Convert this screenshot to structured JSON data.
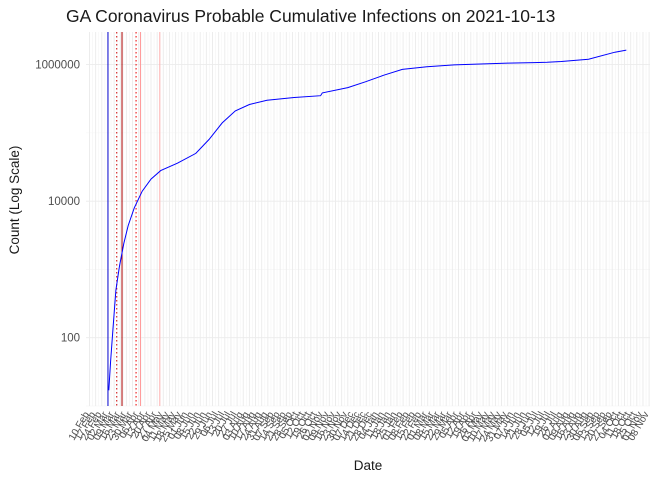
{
  "chart_data": {
    "type": "line",
    "title": "GA Coronavirus Probable Cumulative Infections on 2021-10-13",
    "xlabel": "Date",
    "ylabel": "Count (Log Scale)",
    "y_scale": "log10",
    "ylim": [
      10,
      3000000
    ],
    "xlim": [
      "2020-02-06",
      "2021-11-09"
    ],
    "grid": true,
    "series": [
      {
        "color": "#0000ff",
        "x": [
          "2020-03-03",
          "2020-03-05",
          "2020-03-08",
          "2020-03-11",
          "2020-03-15",
          "2020-03-20",
          "2020-03-25",
          "2020-04-01",
          "2020-04-10",
          "2020-04-20",
          "2020-05-01",
          "2020-05-20",
          "2020-06-10",
          "2020-06-25",
          "2020-07-10",
          "2020-07-25",
          "2020-08-10",
          "2020-08-30",
          "2020-09-30",
          "2020-10-30",
          "2020-11-01",
          "2020-11-30",
          "2020-12-20",
          "2021-01-10",
          "2021-01-31",
          "2021-02-28",
          "2021-03-31",
          "2021-04-30",
          "2021-05-31",
          "2021-06-30",
          "2021-07-15",
          "2021-07-31",
          "2021-08-31",
          "2021-09-30",
          "2021-10-13"
        ],
        "values": [
          17,
          45,
          150,
          500,
          1100,
          2400,
          4400,
          8000,
          14000,
          21000,
          28000,
          36000,
          50000,
          80000,
          140000,
          210000,
          260000,
          300000,
          330000,
          350000,
          385000,
          460000,
          560000,
          700000,
          850000,
          930000,
          990000,
          1020000,
          1050000,
          1070000,
          1080000,
          1110000,
          1200000,
          1520000,
          1630000
        ]
      }
    ],
    "reference_lines": [
      {
        "x": "2020-03-02",
        "color": "#0000cc",
        "style": "solid"
      },
      {
        "x": "2020-03-12",
        "color": "#cc0000",
        "style": "dotted"
      },
      {
        "x": "2020-03-18",
        "color": "#aa0000",
        "style": "solid"
      },
      {
        "x": "2020-04-03",
        "color": "#ee0000",
        "style": "dotted"
      },
      {
        "x": "2020-04-08",
        "color": "#ff9999",
        "style": "solid"
      },
      {
        "x": "2020-04-30",
        "color": "#ffb0b0",
        "style": "solid"
      }
    ],
    "y_ticks": [
      {
        "value": 100,
        "label": "100"
      },
      {
        "value": 10000,
        "label": "10000"
      },
      {
        "value": 1000000,
        "label": "1000000"
      }
    ],
    "x_tick_labels": [
      "10 Feb",
      "17 Feb",
      "24 Feb",
      "02 Mar",
      "09 Mar",
      "16 Mar",
      "23 Mar",
      "30 Mar",
      "06 Apr",
      "13 Apr",
      "20 Apr",
      "27 Apr",
      "04 May",
      "11 May",
      "18 May",
      "25 May",
      "01 Jun",
      "08 Jun",
      "15 Jun",
      "22 Jun",
      "29 Jun",
      "06 Jul",
      "13 Jul",
      "20 Jul",
      "27 Jul",
      "03 Aug",
      "10 Aug",
      "17 Aug",
      "24 Aug",
      "31 Aug",
      "07 Sep",
      "14 Sep",
      "21 Sep",
      "28 Sep",
      "05 Oct",
      "12 Oct",
      "19 Oct",
      "26 Oct",
      "02 Nov",
      "09 Nov",
      "16 Nov",
      "23 Nov",
      "30 Nov",
      "07 Dec",
      "14 Dec",
      "21 Dec",
      "28 Dec",
      "04 Jan",
      "11 Jan",
      "18 Jan",
      "25 Jan",
      "01 Feb",
      "08 Feb",
      "15 Feb",
      "22 Feb",
      "01 Mar",
      "08 Mar",
      "15 Mar",
      "22 Mar",
      "29 Mar",
      "05 Apr",
      "12 Apr",
      "19 Apr",
      "26 Apr",
      "03 May",
      "10 May",
      "17 May",
      "24 May",
      "31 May",
      "07 Jun",
      "14 Jun",
      "21 Jun",
      "28 Jun",
      "05 Jul",
      "12 Jul",
      "19 Jul",
      "26 Jul",
      "02 Aug",
      "09 Aug",
      "16 Aug",
      "23 Aug",
      "30 Aug",
      "06 Sep",
      "13 Sep",
      "20 Sep",
      "27 Sep",
      "04 Oct",
      "11 Oct",
      "18 Oct",
      "25 Oct",
      "01 Nov",
      "08 Nov"
    ],
    "x_tick_start": "2020-02-10",
    "x_tick_step_days": 7
  }
}
